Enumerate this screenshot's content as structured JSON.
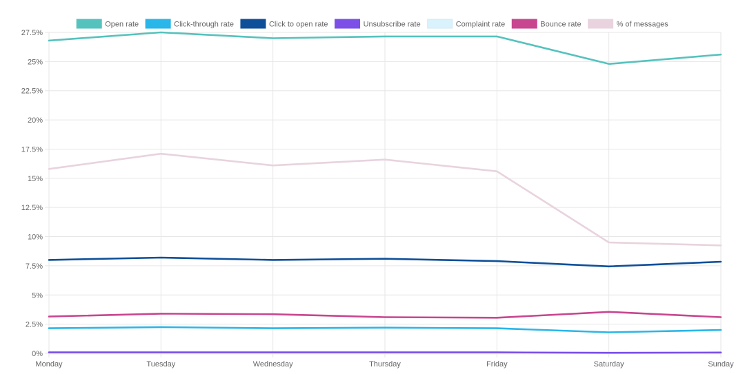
{
  "chart_data": {
    "type": "line",
    "title": "",
    "xlabel": "",
    "ylabel": "",
    "categories": [
      "Monday",
      "Tuesday",
      "Wednesday",
      "Thursday",
      "Friday",
      "Saturday",
      "Sunday"
    ],
    "ylim": [
      0,
      27.5
    ],
    "y_ticks": [
      "0%",
      "2.5%",
      "5%",
      "7.5%",
      "10%",
      "12.5%",
      "15%",
      "17.5%",
      "20%",
      "22.5%",
      "25%",
      "27.5%"
    ],
    "y_tick_values": [
      0,
      2.5,
      5,
      7.5,
      10,
      12.5,
      15,
      17.5,
      20,
      22.5,
      25,
      27.5
    ],
    "grid": true,
    "legend_position": "top",
    "series": [
      {
        "name": "Open rate",
        "color": "#55c2bd",
        "values": [
          26.8,
          27.5,
          27.0,
          27.15,
          27.15,
          24.8,
          25.6
        ]
      },
      {
        "name": "Click-through rate",
        "color": "#29b6e8",
        "values": [
          2.15,
          2.25,
          2.15,
          2.2,
          2.15,
          1.8,
          2.0
        ]
      },
      {
        "name": "Click to open rate",
        "color": "#0e4f99",
        "values": [
          8.0,
          8.2,
          8.0,
          8.1,
          7.9,
          7.45,
          7.85
        ]
      },
      {
        "name": "Unsubscribe rate",
        "color": "#7b4fe8",
        "values": [
          0.08,
          0.08,
          0.08,
          0.08,
          0.08,
          0.05,
          0.07
        ]
      },
      {
        "name": "Complaint rate",
        "color": "#daf2fb",
        "values": [
          0.0,
          0.0,
          0.0,
          0.0,
          0.0,
          0.0,
          0.0
        ]
      },
      {
        "name": "Bounce rate",
        "color": "#c8458f",
        "values": [
          3.15,
          3.4,
          3.35,
          3.1,
          3.05,
          3.55,
          3.1
        ]
      },
      {
        "name": "% of messages",
        "color": "#e8d3de",
        "values": [
          15.8,
          17.1,
          16.1,
          16.6,
          15.6,
          9.5,
          9.25
        ]
      }
    ]
  }
}
